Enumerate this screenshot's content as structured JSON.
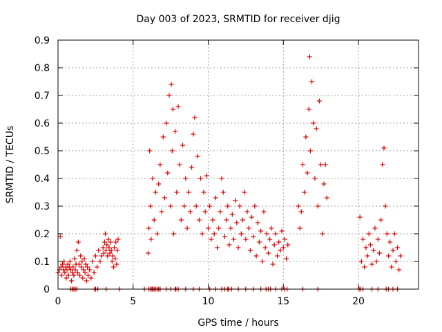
{
  "chart_data": {
    "type": "scatter",
    "title": "Day 003 of 2023, SRMTID for receiver djig",
    "xlabel": "GPS time / hours",
    "ylabel": "SRMTID / TECUs",
    "xlim": [
      0,
      24
    ],
    "ylim": [
      0,
      0.9
    ],
    "x_ticks": [
      0,
      5,
      10,
      15,
      20
    ],
    "x_tick_labels": [
      "0",
      "5",
      "10",
      "15",
      "20"
    ],
    "y_ticks": [
      0,
      0.1,
      0.2,
      0.3,
      0.4,
      0.5,
      0.6,
      0.7,
      0.8,
      0.9
    ],
    "y_tick_labels": [
      "0",
      "0.1",
      "0.2",
      "0.3",
      "0.4",
      "0.5",
      "0.6",
      "0.7",
      "0.8",
      "0.9"
    ],
    "grid": true,
    "marker": "+",
    "color": "#e00000",
    "series": [
      {
        "name": "SRMTID",
        "x": [
          0.0,
          0.1,
          0.15,
          0.2,
          0.25,
          0.3,
          0.35,
          0.4,
          0.45,
          0.5,
          0.55,
          0.6,
          0.65,
          0.7,
          0.75,
          0.8,
          0.85,
          0.9,
          0.95,
          1.0,
          1.05,
          1.1,
          1.15,
          1.2,
          1.25,
          1.3,
          1.35,
          1.4,
          1.45,
          1.5,
          1.55,
          1.6,
          1.65,
          1.7,
          1.75,
          1.8,
          1.85,
          1.9,
          1.95,
          2.0,
          2.1,
          2.2,
          2.3,
          2.4,
          2.5,
          2.6,
          2.7,
          2.8,
          2.9,
          3.0,
          3.05,
          3.1,
          3.15,
          3.2,
          3.25,
          3.3,
          3.35,
          3.4,
          3.45,
          3.5,
          3.55,
          3.6,
          3.65,
          3.7,
          3.75,
          3.8,
          3.85,
          3.9,
          3.95,
          4.0,
          6.0,
          6.05,
          6.1,
          6.15,
          6.2,
          6.3,
          6.4,
          6.5,
          6.6,
          6.7,
          6.8,
          6.9,
          7.0,
          7.1,
          7.2,
          7.3,
          7.4,
          7.5,
          7.55,
          7.6,
          7.65,
          7.7,
          7.8,
          7.9,
          8.0,
          8.1,
          8.2,
          8.3,
          8.4,
          8.5,
          8.6,
          8.7,
          8.8,
          8.9,
          9.0,
          9.1,
          9.2,
          9.3,
          9.4,
          9.5,
          9.6,
          9.7,
          9.8,
          9.9,
          10.0,
          10.1,
          10.2,
          10.3,
          10.4,
          10.5,
          10.6,
          10.7,
          10.8,
          10.9,
          11.0,
          11.1,
          11.2,
          11.3,
          11.4,
          11.5,
          11.6,
          11.7,
          11.8,
          11.9,
          12.0,
          12.1,
          12.2,
          12.3,
          12.4,
          12.5,
          12.6,
          12.7,
          12.8,
          12.9,
          13.0,
          13.1,
          13.2,
          13.3,
          13.4,
          13.5,
          13.6,
          13.7,
          13.8,
          13.9,
          14.0,
          14.1,
          14.2,
          14.3,
          14.4,
          14.5,
          14.6,
          14.7,
          14.8,
          14.9,
          15.0,
          15.1,
          15.2,
          15.3,
          16.0,
          16.1,
          16.2,
          16.3,
          16.4,
          16.5,
          16.6,
          16.7,
          16.75,
          16.8,
          16.9,
          17.0,
          17.1,
          17.2,
          17.3,
          17.4,
          17.5,
          17.6,
          17.7,
          17.8,
          17.9,
          20.1,
          20.2,
          20.3,
          20.4,
          20.5,
          20.6,
          20.7,
          20.8,
          20.9,
          21.0,
          21.1,
          21.2,
          21.3,
          21.4,
          21.5,
          21.6,
          21.7,
          21.8,
          21.9,
          22.0,
          22.1,
          22.2,
          22.3,
          22.4,
          22.5,
          22.6,
          22.7,
          22.8
        ],
        "y": [
          0.06,
          0.07,
          0.19,
          0.08,
          0.05,
          0.09,
          0.07,
          0.1,
          0.06,
          0.08,
          0.04,
          0.07,
          0.09,
          0.05,
          0.08,
          0.1,
          0.07,
          0.03,
          0.06,
          0.08,
          0.05,
          0.11,
          0.07,
          0.09,
          0.14,
          0.06,
          0.17,
          0.09,
          0.05,
          0.12,
          0.08,
          0.1,
          0.04,
          0.07,
          0.11,
          0.06,
          0.09,
          0.03,
          0.08,
          0.05,
          0.07,
          0.04,
          0.1,
          0.06,
          0.12,
          0.08,
          0.14,
          0.1,
          0.12,
          0.15,
          0.13,
          0.17,
          0.2,
          0.14,
          0.16,
          0.12,
          0.18,
          0.15,
          0.13,
          0.17,
          0.14,
          0.1,
          0.12,
          0.08,
          0.15,
          0.11,
          0.17,
          0.09,
          0.14,
          0.18,
          0.13,
          0.22,
          0.5,
          0.3,
          0.18,
          0.4,
          0.25,
          0.35,
          0.2,
          0.38,
          0.45,
          0.28,
          0.55,
          0.33,
          0.6,
          0.42,
          0.7,
          0.3,
          0.74,
          0.5,
          0.65,
          0.2,
          0.57,
          0.35,
          0.66,
          0.45,
          0.25,
          0.52,
          0.3,
          0.4,
          0.22,
          0.35,
          0.28,
          0.44,
          0.56,
          0.62,
          0.3,
          0.48,
          0.25,
          0.4,
          0.2,
          0.35,
          0.28,
          0.41,
          0.22,
          0.3,
          0.18,
          0.25,
          0.2,
          0.33,
          0.15,
          0.22,
          0.28,
          0.4,
          0.35,
          0.19,
          0.25,
          0.3,
          0.16,
          0.22,
          0.27,
          0.18,
          0.32,
          0.24,
          0.15,
          0.3,
          0.2,
          0.25,
          0.35,
          0.18,
          0.28,
          0.22,
          0.14,
          0.26,
          0.19,
          0.3,
          0.12,
          0.24,
          0.17,
          0.21,
          0.1,
          0.28,
          0.15,
          0.2,
          0.13,
          0.18,
          0.22,
          0.09,
          0.16,
          0.2,
          0.12,
          0.17,
          0.14,
          0.21,
          0.15,
          0.18,
          0.11,
          0.16,
          0.3,
          0.22,
          0.28,
          0.45,
          0.35,
          0.55,
          0.42,
          0.65,
          0.84,
          0.5,
          0.75,
          0.6,
          0.4,
          0.58,
          0.3,
          0.68,
          0.45,
          0.2,
          0.38,
          0.45,
          0.33,
          0.26,
          0.1,
          0.18,
          0.08,
          0.15,
          0.12,
          0.2,
          0.16,
          0.09,
          0.14,
          0.22,
          0.1,
          0.18,
          0.13,
          0.25,
          0.45,
          0.51,
          0.3,
          0.2,
          0.12,
          0.17,
          0.08,
          0.14,
          0.2,
          0.1,
          0.15,
          0.07,
          0.12
        ]
      }
    ],
    "zero_points_x": [
      0.85,
      0.95,
      1.05,
      1.15,
      1.25,
      2.45,
      2.5,
      2.65,
      3.2,
      4.1,
      5.75,
      6.05,
      6.15,
      6.25,
      6.3,
      6.4,
      6.5,
      6.6,
      6.7,
      6.8,
      7.2,
      7.5,
      7.8,
      7.85,
      8.0,
      8.5,
      9.0,
      9.4,
      10.1,
      10.5,
      10.9,
      11.1,
      11.3,
      11.35,
      11.55,
      12.0,
      12.5,
      13.0,
      13.5,
      13.85,
      14.0,
      14.15,
      14.5,
      14.9,
      15.1,
      15.25,
      16.3,
      17.3,
      20.05,
      20.15,
      20.3,
      20.9,
      21.3,
      21.85,
      22.0,
      22.3,
      22.6
    ]
  }
}
